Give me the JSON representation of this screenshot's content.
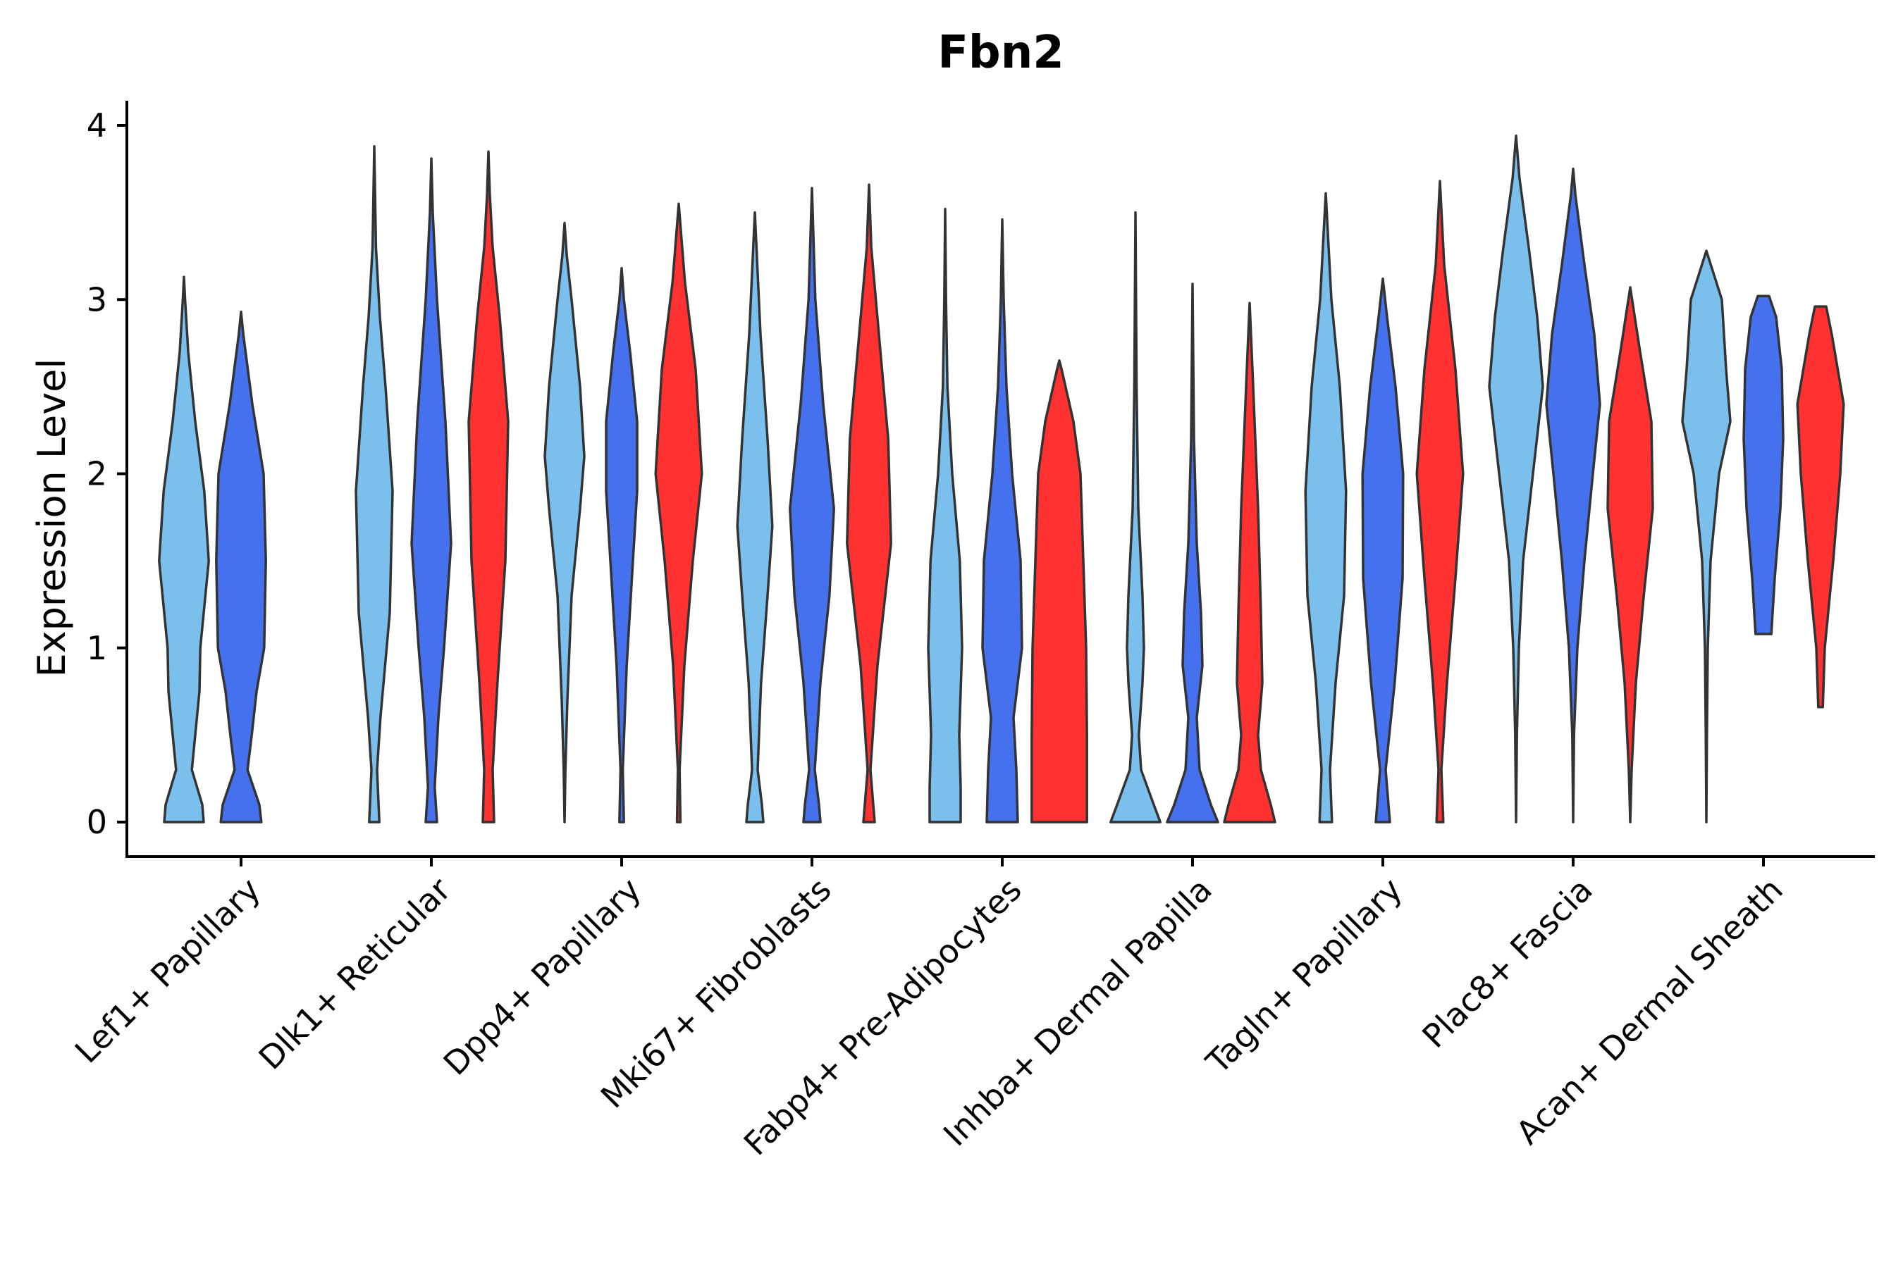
{
  "chart_data": {
    "type": "violin",
    "title": "Fbn2",
    "xlabel": "",
    "ylabel": "Expression Level",
    "ylim": [
      -0.2,
      4.15
    ],
    "yticks": [
      0,
      1,
      2,
      3,
      4
    ],
    "grid": false,
    "legend": "none",
    "colors": [
      "#7bbfec",
      "#4571ee",
      "#ff3131"
    ],
    "categories": [
      "Lef1+ Papillary",
      "Dlk1+ Reticular",
      "Dpp4+ Papillary",
      "Mki67+ Fibroblasts",
      "Fabp4+ Pre-Adipocytes",
      "Inhba+ Dermal Papilla",
      "Tagln+ Papillary",
      "Plac8+ Fascia",
      "Acan+ Dermal Sheath"
    ],
    "violins": [
      {
        "category": "Lef1+ Papillary",
        "group": 0,
        "min": 0,
        "max": 3.13,
        "profile": [
          [
            0,
            0.7
          ],
          [
            0.1,
            0.65
          ],
          [
            0.3,
            0.28
          ],
          [
            0.5,
            0.4
          ],
          [
            0.75,
            0.55
          ],
          [
            1.0,
            0.58
          ],
          [
            1.5,
            0.88
          ],
          [
            1.9,
            0.72
          ],
          [
            2.3,
            0.4
          ],
          [
            2.7,
            0.15
          ],
          [
            3.0,
            0.04
          ],
          [
            3.13,
            0
          ]
        ]
      },
      {
        "category": "Lef1+ Papillary",
        "group": 1,
        "min": 0,
        "max": 2.93,
        "profile": [
          [
            0,
            0.72
          ],
          [
            0.1,
            0.65
          ],
          [
            0.3,
            0.23
          ],
          [
            0.5,
            0.38
          ],
          [
            0.75,
            0.55
          ],
          [
            1.0,
            0.82
          ],
          [
            1.5,
            0.88
          ],
          [
            2.0,
            0.8
          ],
          [
            2.4,
            0.4
          ],
          [
            2.8,
            0.08
          ],
          [
            2.93,
            0
          ]
        ]
      },
      {
        "category": "Dlk1+ Reticular",
        "group": 0,
        "min": 0,
        "max": 3.88,
        "profile": [
          [
            0,
            0.18
          ],
          [
            0.3,
            0.1
          ],
          [
            0.6,
            0.22
          ],
          [
            1.2,
            0.55
          ],
          [
            1.9,
            0.65
          ],
          [
            2.5,
            0.4
          ],
          [
            2.9,
            0.2
          ],
          [
            3.3,
            0.06
          ],
          [
            3.88,
            0
          ]
        ]
      },
      {
        "category": "Dlk1+ Reticular",
        "group": 1,
        "min": 0,
        "max": 3.81,
        "profile": [
          [
            0,
            0.2
          ],
          [
            0.2,
            0.12
          ],
          [
            0.6,
            0.25
          ],
          [
            1.0,
            0.45
          ],
          [
            1.6,
            0.7
          ],
          [
            2.3,
            0.5
          ],
          [
            3.0,
            0.2
          ],
          [
            3.5,
            0.05
          ],
          [
            3.81,
            0
          ]
        ]
      },
      {
        "category": "Dlk1+ Reticular",
        "group": 2,
        "min": 0,
        "max": 3.85,
        "profile": [
          [
            0,
            0.2
          ],
          [
            0.3,
            0.15
          ],
          [
            0.8,
            0.32
          ],
          [
            1.5,
            0.6
          ],
          [
            2.3,
            0.7
          ],
          [
            2.9,
            0.4
          ],
          [
            3.3,
            0.15
          ],
          [
            3.6,
            0.05
          ],
          [
            3.85,
            0
          ]
        ]
      },
      {
        "category": "Dpp4+ Papillary",
        "group": 0,
        "min": 0,
        "max": 3.44,
        "profile": [
          [
            0,
            0
          ],
          [
            0.3,
            0.03
          ],
          [
            0.7,
            0.1
          ],
          [
            1.3,
            0.25
          ],
          [
            1.8,
            0.55
          ],
          [
            2.1,
            0.7
          ],
          [
            2.5,
            0.55
          ],
          [
            3.0,
            0.25
          ],
          [
            3.25,
            0.08
          ],
          [
            3.44,
            0
          ]
        ]
      },
      {
        "category": "Dpp4+ Papillary",
        "group": 1,
        "min": 0,
        "max": 3.18,
        "profile": [
          [
            0,
            0.08
          ],
          [
            0.3,
            0.04
          ],
          [
            0.9,
            0.18
          ],
          [
            1.5,
            0.4
          ],
          [
            1.9,
            0.55
          ],
          [
            2.3,
            0.55
          ],
          [
            2.7,
            0.3
          ],
          [
            3.0,
            0.08
          ],
          [
            3.18,
            0
          ]
        ]
      },
      {
        "category": "Dpp4+ Papillary",
        "group": 2,
        "min": 0,
        "max": 3.55,
        "profile": [
          [
            0,
            0.06
          ],
          [
            0.3,
            0.03
          ],
          [
            0.9,
            0.2
          ],
          [
            1.5,
            0.5
          ],
          [
            2.0,
            0.82
          ],
          [
            2.6,
            0.6
          ],
          [
            3.1,
            0.22
          ],
          [
            3.55,
            0
          ]
        ]
      },
      {
        "category": "Mki67+ Fibroblasts",
        "group": 0,
        "min": 0,
        "max": 3.5,
        "profile": [
          [
            0,
            0.3
          ],
          [
            0.1,
            0.25
          ],
          [
            0.3,
            0.1
          ],
          [
            0.8,
            0.22
          ],
          [
            1.3,
            0.45
          ],
          [
            1.7,
            0.62
          ],
          [
            2.2,
            0.45
          ],
          [
            2.8,
            0.2
          ],
          [
            3.5,
            0
          ]
        ]
      },
      {
        "category": "Mki67+ Fibroblasts",
        "group": 1,
        "min": 0,
        "max": 3.64,
        "profile": [
          [
            0,
            0.3
          ],
          [
            0.1,
            0.25
          ],
          [
            0.3,
            0.1
          ],
          [
            0.8,
            0.3
          ],
          [
            1.3,
            0.62
          ],
          [
            1.8,
            0.78
          ],
          [
            2.4,
            0.4
          ],
          [
            3.0,
            0.12
          ],
          [
            3.64,
            0
          ]
        ]
      },
      {
        "category": "Mki67+ Fibroblasts",
        "group": 2,
        "min": 0,
        "max": 3.66,
        "profile": [
          [
            0,
            0.2
          ],
          [
            0.3,
            0.05
          ],
          [
            0.9,
            0.3
          ],
          [
            1.6,
            0.78
          ],
          [
            2.2,
            0.68
          ],
          [
            2.8,
            0.35
          ],
          [
            3.3,
            0.08
          ],
          [
            3.66,
            0
          ]
        ]
      },
      {
        "category": "Fabp4+ Pre-Adipocytes",
        "group": 0,
        "min": 0,
        "max": 3.52,
        "profile": [
          [
            0,
            0.55
          ],
          [
            0.2,
            0.55
          ],
          [
            0.5,
            0.5
          ],
          [
            1.0,
            0.6
          ],
          [
            1.5,
            0.52
          ],
          [
            2.0,
            0.25
          ],
          [
            2.5,
            0.08
          ],
          [
            3.0,
            0.03
          ],
          [
            3.52,
            0
          ]
        ]
      },
      {
        "category": "Fabp4+ Pre-Adipocytes",
        "group": 1,
        "min": 0,
        "max": 3.46,
        "profile": [
          [
            0,
            0.55
          ],
          [
            0.3,
            0.5
          ],
          [
            0.6,
            0.4
          ],
          [
            1.0,
            0.7
          ],
          [
            1.5,
            0.65
          ],
          [
            2.0,
            0.35
          ],
          [
            2.5,
            0.15
          ],
          [
            3.0,
            0.05
          ],
          [
            3.46,
            0
          ]
        ]
      },
      {
        "category": "Fabp4+ Pre-Adipocytes",
        "group": 2,
        "min": 0,
        "max": 2.65,
        "profile": [
          [
            0,
            0.98
          ],
          [
            0.5,
            0.98
          ],
          [
            1.0,
            0.95
          ],
          [
            1.5,
            0.85
          ],
          [
            2.0,
            0.75
          ],
          [
            2.3,
            0.5
          ],
          [
            2.6,
            0.08
          ],
          [
            2.65,
            0
          ]
        ]
      },
      {
        "category": "Inhba+ Dermal Papilla",
        "group": 0,
        "min": 0,
        "max": 3.5,
        "profile": [
          [
            0,
            0.88
          ],
          [
            0.1,
            0.65
          ],
          [
            0.3,
            0.2
          ],
          [
            0.5,
            0.12
          ],
          [
            0.8,
            0.25
          ],
          [
            1.0,
            0.3
          ],
          [
            1.3,
            0.25
          ],
          [
            1.8,
            0.1
          ],
          [
            2.5,
            0.04
          ],
          [
            3.5,
            0
          ]
        ]
      },
      {
        "category": "Inhba+ Dermal Papilla",
        "group": 1,
        "min": 0,
        "max": 3.09,
        "profile": [
          [
            0,
            0.9
          ],
          [
            0.1,
            0.65
          ],
          [
            0.3,
            0.25
          ],
          [
            0.6,
            0.15
          ],
          [
            0.9,
            0.35
          ],
          [
            1.2,
            0.3
          ],
          [
            1.6,
            0.15
          ],
          [
            2.2,
            0.05
          ],
          [
            3.09,
            0
          ]
        ]
      },
      {
        "category": "Inhba+ Dermal Papilla",
        "group": 2,
        "min": 0,
        "max": 2.98,
        "profile": [
          [
            0,
            0.9
          ],
          [
            0.1,
            0.75
          ],
          [
            0.3,
            0.4
          ],
          [
            0.5,
            0.3
          ],
          [
            0.8,
            0.45
          ],
          [
            1.2,
            0.4
          ],
          [
            1.8,
            0.3
          ],
          [
            2.2,
            0.2
          ],
          [
            2.6,
            0.1
          ],
          [
            2.98,
            0
          ]
        ]
      },
      {
        "category": "Tagln+ Papillary",
        "group": 0,
        "min": 0,
        "max": 3.61,
        "profile": [
          [
            0,
            0.22
          ],
          [
            0.3,
            0.15
          ],
          [
            0.8,
            0.35
          ],
          [
            1.3,
            0.65
          ],
          [
            1.9,
            0.72
          ],
          [
            2.5,
            0.5
          ],
          [
            3.0,
            0.2
          ],
          [
            3.61,
            0
          ]
        ]
      },
      {
        "category": "Tagln+ Papillary",
        "group": 1,
        "min": 0,
        "max": 3.12,
        "profile": [
          [
            0,
            0.25
          ],
          [
            0.3,
            0.1
          ],
          [
            0.8,
            0.42
          ],
          [
            1.4,
            0.7
          ],
          [
            2.0,
            0.72
          ],
          [
            2.5,
            0.45
          ],
          [
            2.9,
            0.15
          ],
          [
            3.12,
            0
          ]
        ]
      },
      {
        "category": "Tagln+ Papillary",
        "group": 2,
        "min": 0,
        "max": 3.68,
        "profile": [
          [
            0,
            0.12
          ],
          [
            0.3,
            0.05
          ],
          [
            0.8,
            0.25
          ],
          [
            1.4,
            0.55
          ],
          [
            2.0,
            0.82
          ],
          [
            2.6,
            0.55
          ],
          [
            3.2,
            0.15
          ],
          [
            3.68,
            0
          ]
        ]
      },
      {
        "category": "Plac8+ Fascia",
        "group": 0,
        "min": 0,
        "max": 3.94,
        "profile": [
          [
            0,
            0
          ],
          [
            0.5,
            0.03
          ],
          [
            1.0,
            0.1
          ],
          [
            1.5,
            0.25
          ],
          [
            2.0,
            0.6
          ],
          [
            2.5,
            0.95
          ],
          [
            2.9,
            0.75
          ],
          [
            3.3,
            0.45
          ],
          [
            3.7,
            0.12
          ],
          [
            3.94,
            0
          ]
        ]
      },
      {
        "category": "Plac8+ Fascia",
        "group": 1,
        "min": 0,
        "max": 3.75,
        "profile": [
          [
            0,
            0
          ],
          [
            0.5,
            0.03
          ],
          [
            1.0,
            0.15
          ],
          [
            1.5,
            0.4
          ],
          [
            2.0,
            0.7
          ],
          [
            2.4,
            0.95
          ],
          [
            2.8,
            0.75
          ],
          [
            3.2,
            0.4
          ],
          [
            3.6,
            0.08
          ],
          [
            3.75,
            0
          ]
        ]
      },
      {
        "category": "Plac8+ Fascia",
        "group": 2,
        "min": 0,
        "max": 3.07,
        "profile": [
          [
            0,
            0
          ],
          [
            0.3,
            0.05
          ],
          [
            0.8,
            0.2
          ],
          [
            1.3,
            0.48
          ],
          [
            1.8,
            0.8
          ],
          [
            2.3,
            0.75
          ],
          [
            2.7,
            0.35
          ],
          [
            3.07,
            0
          ]
        ]
      },
      {
        "category": "Acan+ Dermal Sheath",
        "group": 0,
        "min": 0,
        "max": 3.28,
        "profile": [
          [
            0,
            0
          ],
          [
            0.5,
            0.02
          ],
          [
            1.0,
            0.05
          ],
          [
            1.5,
            0.15
          ],
          [
            2.0,
            0.45
          ],
          [
            2.3,
            0.85
          ],
          [
            2.6,
            0.7
          ],
          [
            3.0,
            0.55
          ],
          [
            3.28,
            0
          ]
        ]
      },
      {
        "category": "Acan+ Dermal Sheath",
        "group": 1,
        "min": 1.08,
        "max": 3.02,
        "profile": [
          [
            1.08,
            0.28
          ],
          [
            1.4,
            0.4
          ],
          [
            1.8,
            0.6
          ],
          [
            2.2,
            0.7
          ],
          [
            2.6,
            0.65
          ],
          [
            2.9,
            0.45
          ],
          [
            3.02,
            0.2
          ]
        ]
      },
      {
        "category": "Acan+ Dermal Sheath",
        "group": 2,
        "min": 0.66,
        "max": 2.96,
        "profile": [
          [
            0.66,
            0.08
          ],
          [
            1.0,
            0.15
          ],
          [
            1.5,
            0.45
          ],
          [
            2.0,
            0.7
          ],
          [
            2.4,
            0.82
          ],
          [
            2.8,
            0.4
          ],
          [
            2.96,
            0.2
          ]
        ]
      }
    ]
  }
}
